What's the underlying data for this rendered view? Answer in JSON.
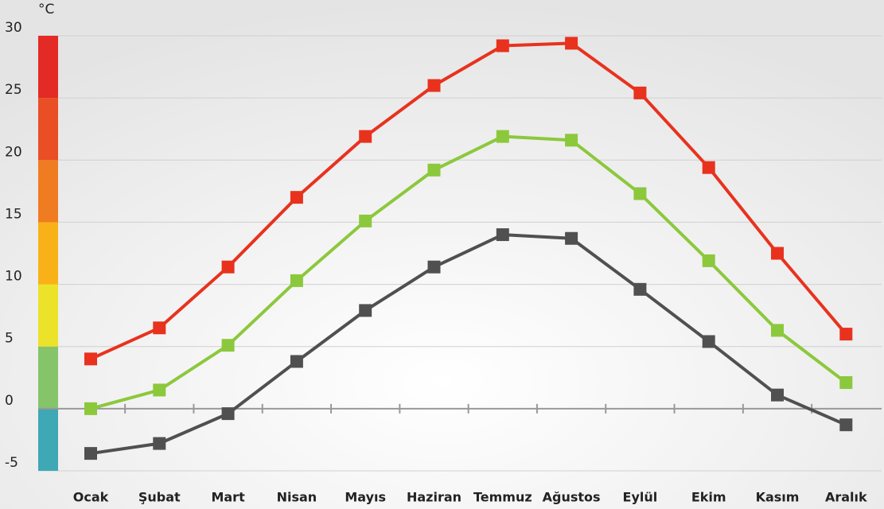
{
  "chart_data": {
    "type": "line",
    "unit": "°C",
    "categories": [
      "Ocak",
      "Şubat",
      "Mart",
      "Nisan",
      "Mayıs",
      "Haziran",
      "Temmuz",
      "Ağustos",
      "Eylül",
      "Ekim",
      "Kasım",
      "Aralık"
    ],
    "series": [
      {
        "color": "#e8321e",
        "values": [
          4.0,
          6.5,
          11.4,
          17.0,
          21.9,
          26.0,
          29.2,
          29.4,
          25.4,
          19.4,
          12.5,
          6.0
        ]
      },
      {
        "color": "#8cc83c",
        "values": [
          0.0,
          1.5,
          5.1,
          10.3,
          15.1,
          19.2,
          21.9,
          21.6,
          17.3,
          11.9,
          6.3,
          2.1
        ]
      },
      {
        "color": "#505050",
        "values": [
          -3.6,
          -2.8,
          -0.4,
          3.8,
          7.9,
          11.4,
          14.0,
          13.7,
          9.6,
          5.4,
          1.1,
          -1.3
        ]
      }
    ],
    "ylim": [
      -5,
      30
    ],
    "yticks": [
      -5,
      0,
      5,
      10,
      15,
      20,
      25,
      30
    ],
    "grid": true,
    "scale_colors": [
      "#3ea8b4",
      "#86c46a",
      "#ece22a",
      "#f8b218",
      "#f07c22",
      "#ea4e24",
      "#e42a24"
    ]
  }
}
